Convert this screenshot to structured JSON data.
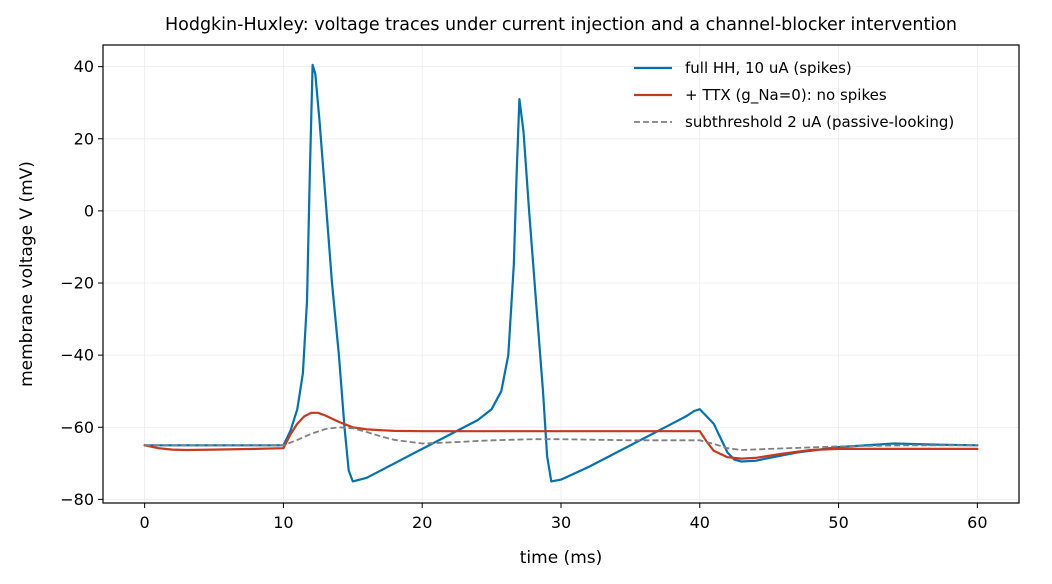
{
  "chart_data": {
    "type": "line",
    "title": "Hodgkin-Huxley: voltage traces under current injection and a channel-blocker intervention",
    "xlabel": "time (ms)",
    "ylabel": "membrane voltage V (mV)",
    "xlim": [
      -3,
      63
    ],
    "ylim": [
      -81,
      46
    ],
    "xticks": [
      0,
      10,
      20,
      30,
      40,
      50,
      60
    ],
    "yticks": [
      -80,
      -60,
      -40,
      -20,
      0,
      20,
      40
    ],
    "grid": true,
    "legend_position": "top-right",
    "series": [
      {
        "name": "full HH, 10 uA (spikes)",
        "color": "#0072b2",
        "style": "solid",
        "x": [
          0,
          3,
          6,
          9,
          10,
          10.5,
          11,
          11.4,
          11.7,
          11.9,
          12.1,
          12.3,
          12.6,
          13,
          13.5,
          14,
          14.4,
          14.7,
          15,
          16,
          18,
          20,
          22,
          24,
          25,
          25.7,
          26.2,
          26.6,
          26.8,
          27,
          27.3,
          27.7,
          28.2,
          28.7,
          29,
          29.3,
          30,
          32,
          34,
          36,
          38,
          39,
          39.6,
          40,
          40.5,
          41,
          41.5,
          42,
          42.5,
          43,
          44,
          45,
          47,
          50,
          54,
          57,
          60
        ],
        "y": [
          -65,
          -65,
          -65,
          -65,
          -65,
          -61,
          -55,
          -45,
          -25,
          10,
          40.5,
          38,
          25,
          5,
          -20,
          -40,
          -60,
          -72,
          -75,
          -74,
          -70,
          -66,
          -62,
          -58,
          -55,
          -50,
          -40,
          -15,
          10,
          31,
          22,
          0,
          -25,
          -50,
          -68,
          -75,
          -74.5,
          -71,
          -67,
          -63,
          -59,
          -57,
          -55.5,
          -55,
          -57,
          -59,
          -63,
          -67,
          -69,
          -69.5,
          -69.3,
          -68.5,
          -67,
          -65.5,
          -64.5,
          -64.8,
          -65
        ]
      },
      {
        "name": "+ TTX (g_Na=0): no spikes",
        "color": "#c8381c",
        "style": "solid",
        "x": [
          0,
          1,
          2,
          3,
          5,
          8,
          10,
          10.5,
          11,
          11.5,
          12,
          12.5,
          13,
          14,
          15,
          16,
          18,
          20,
          25,
          30,
          35,
          39,
          40,
          40.5,
          41,
          42,
          43,
          44,
          46,
          48,
          50,
          55,
          60
        ],
        "y": [
          -65,
          -65.8,
          -66.2,
          -66.3,
          -66.2,
          -66,
          -65.8,
          -62,
          -59,
          -57,
          -56,
          -56,
          -56.7,
          -58.5,
          -60,
          -60.6,
          -61,
          -61.1,
          -61.1,
          -61.1,
          -61.1,
          -61.1,
          -61.1,
          -64,
          -66.5,
          -68.3,
          -68.7,
          -68.5,
          -67.3,
          -66.3,
          -66,
          -66,
          -66
        ]
      },
      {
        "name": "subthreshold 2 uA (passive-looking)",
        "color": "#808080",
        "style": "dashed",
        "x": [
          0,
          5,
          10,
          11,
          12,
          13,
          14,
          15,
          16,
          17,
          18,
          20,
          22,
          25,
          28,
          30,
          35,
          40,
          41,
          42,
          43,
          45,
          50,
          55,
          60
        ],
        "y": [
          -65,
          -65,
          -65,
          -63.5,
          -61.8,
          -60.5,
          -60,
          -60.3,
          -61.3,
          -62.5,
          -63.5,
          -64.5,
          -64.2,
          -63.6,
          -63.3,
          -63.3,
          -63.6,
          -63.6,
          -64.6,
          -65.8,
          -66.3,
          -66,
          -65.3,
          -65,
          -65
        ]
      }
    ]
  }
}
